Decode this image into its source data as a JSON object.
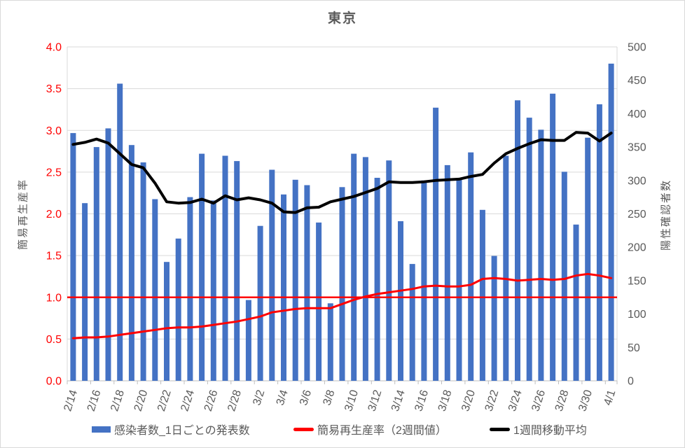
{
  "title": "東京",
  "left_axis": {
    "title": "簡易再生産率",
    "min": 0,
    "max": 4,
    "tick_values": [
      0,
      0.5,
      1,
      1.5,
      2,
      2.5,
      3,
      3.5,
      4
    ],
    "tick_labels": [
      "0.0",
      "0.5",
      "1.0",
      "1.5",
      "2.0",
      "2.5",
      "3.0",
      "3.5",
      "4.0"
    ],
    "label_color": "#FF0000"
  },
  "right_axis": {
    "title": "陽性確認者数",
    "min": 0,
    "max": 500,
    "tick_values": [
      0,
      50,
      100,
      150,
      200,
      250,
      300,
      350,
      400,
      450,
      500
    ],
    "tick_labels": [
      "0",
      "50",
      "100",
      "150",
      "200",
      "250",
      "300",
      "350",
      "400",
      "450",
      "500"
    ],
    "label_color": "#595959"
  },
  "legend": {
    "items": [
      {
        "label": "感染者数_1日ごとの発表数",
        "type": "bar",
        "color": "#4472C4"
      },
      {
        "label": "簡易再生産率（2週間値）",
        "type": "line",
        "color": "#FF0000"
      },
      {
        "label": "1週間移動平均",
        "type": "line",
        "color": "#000000"
      }
    ]
  },
  "colors": {
    "bar": "#4472C4",
    "red_line": "#FF0000",
    "black_line": "#000000",
    "grid": "#D9D9D9",
    "axis_line": "#BFBFBF",
    "axis_text": "#595959",
    "title_text": "#595959",
    "border": "#D9D9D9"
  },
  "chart_data": {
    "type": "bar",
    "title": "東京",
    "xlabel": "",
    "ylabel_left": "簡易再生産率",
    "ylabel_right": "陽性確認者数",
    "ylim_left": [
      0,
      4
    ],
    "ylim_right": [
      0,
      500
    ],
    "grid": "horizontal",
    "legend_position": "bottom",
    "x_label_interval": 2,
    "categories": [
      "2/14",
      "2/15",
      "2/16",
      "2/17",
      "2/18",
      "2/19",
      "2/20",
      "2/21",
      "2/22",
      "2/23",
      "2/24",
      "2/25",
      "2/26",
      "2/27",
      "2/28",
      "3/1",
      "3/2",
      "3/3",
      "3/4",
      "3/5",
      "3/6",
      "3/7",
      "3/8",
      "3/9",
      "3/10",
      "3/11",
      "3/12",
      "3/13",
      "3/14",
      "3/15",
      "3/16",
      "3/17",
      "3/18",
      "3/19",
      "3/20",
      "3/21",
      "3/22",
      "3/23",
      "3/24",
      "3/25",
      "3/26",
      "3/27",
      "3/28",
      "3/29",
      "3/30",
      "3/31",
      "4/1"
    ],
    "series": [
      {
        "name": "感染者数_1日ごとの発表数",
        "type": "bar",
        "axis": "right",
        "color": "#4472C4",
        "values": [
          371,
          266,
          350,
          378,
          445,
          353,
          327,
          272,
          178,
          213,
          275,
          340,
          270,
          337,
          329,
          121,
          232,
          316,
          279,
          301,
          293,
          237,
          116,
          290,
          340,
          335,
          304,
          330,
          239,
          175,
          300,
          409,
          323,
          303,
          342,
          256,
          187,
          337,
          420,
          394,
          376,
          430,
          313,
          234,
          364,
          414,
          475
        ]
      },
      {
        "name": "簡易再生産率（2週間値）",
        "type": "line",
        "axis": "left",
        "color": "#FF0000",
        "values": [
          0.51,
          0.52,
          0.52,
          0.53,
          0.55,
          0.57,
          0.59,
          0.61,
          0.63,
          0.64,
          0.64,
          0.65,
          0.67,
          0.69,
          0.71,
          0.74,
          0.77,
          0.82,
          0.84,
          0.86,
          0.87,
          0.87,
          0.87,
          0.92,
          0.97,
          1.01,
          1.04,
          1.06,
          1.08,
          1.1,
          1.13,
          1.14,
          1.13,
          1.13,
          1.15,
          1.22,
          1.23,
          1.22,
          1.2,
          1.21,
          1.22,
          1.21,
          1.22,
          1.26,
          1.28,
          1.26,
          1.23
        ]
      },
      {
        "name": "1週間移動平均",
        "type": "line",
        "axis": "right",
        "color": "#000000",
        "values": [
          354,
          357,
          362,
          356,
          340,
          324,
          319,
          296,
          268,
          266,
          267,
          272,
          266,
          277,
          271,
          274,
          271,
          266,
          253,
          252,
          259,
          260,
          268,
          272,
          276,
          282,
          288,
          298,
          297,
          297,
          298,
          300,
          301,
          302,
          306,
          309,
          326,
          340,
          348,
          355,
          361,
          360,
          360,
          372,
          371,
          359,
          371
        ]
      }
    ],
    "reference_line": {
      "value": 1.0,
      "axis": "left",
      "color": "#FF0000"
    }
  }
}
